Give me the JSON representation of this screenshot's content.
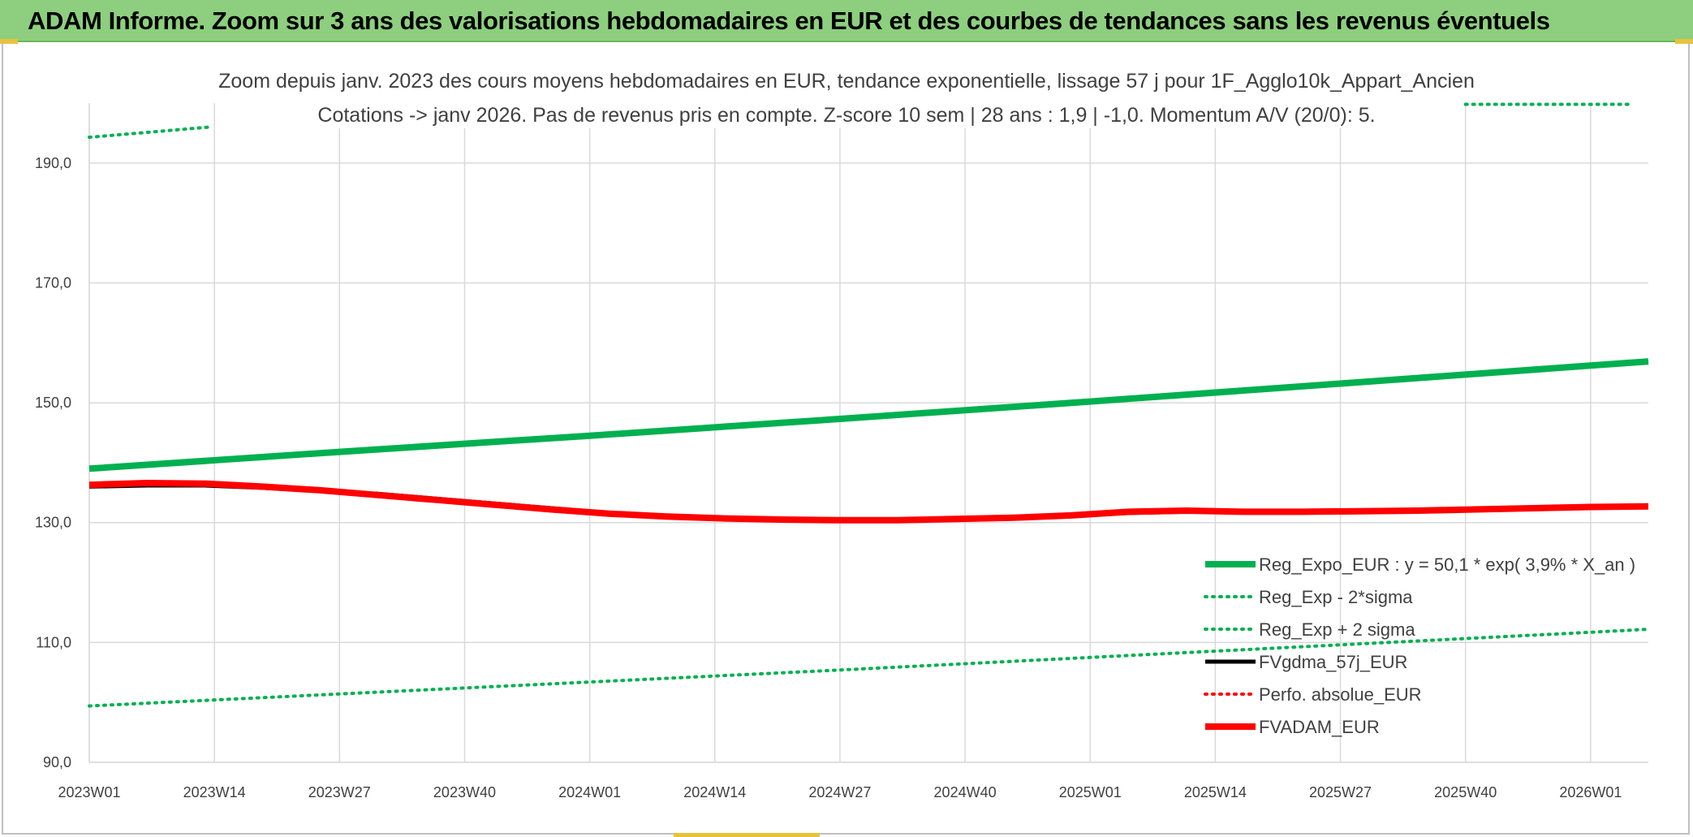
{
  "banner": {
    "title": "ADAM Informe. Zoom sur 3 ans des valorisations hebdomadaires en EUR et des courbes de tendances sans les revenus éventuels"
  },
  "colors": {
    "banner_bg": "#8dcf7e",
    "green": "#00b050",
    "red": "#ff0000",
    "black": "#000000",
    "grid": "#d9d9d9",
    "text": "#404040"
  },
  "chart_data": {
    "type": "line",
    "title": "",
    "subtitle_lines": [
      "Zoom depuis janv. 2023 des cours moyens hebdomadaires en EUR, tendance exponentielle, lissage 57 j pour 1F_Agglo10k_Appart_Ancien",
      "Cotations -> janv 2026. Pas de revenus pris en compte. Z-score 10 sem | 28 ans : 1,9 | -1,0. Momentum A/V (20/0): 5."
    ],
    "xlabel": "",
    "ylabel": "",
    "ylim": [
      90,
      200
    ],
    "y_ticks": [
      "90,0",
      "110,0",
      "130,0",
      "150,0",
      "170,0",
      "190,0"
    ],
    "y_tick_values": [
      90,
      110,
      130,
      150,
      170,
      190
    ],
    "x_ticks": [
      "2023W01",
      "2023W14",
      "2023W27",
      "2023W40",
      "2024W01",
      "2024W14",
      "2024W27",
      "2024W40",
      "2025W01",
      "2025W14",
      "2025W27",
      "2025W40",
      "2026W01"
    ],
    "x_range_weeks": [
      0,
      162
    ],
    "grid": true,
    "legend_position": "bottom-right",
    "series": [
      {
        "name": "Reg_Expo_EUR : y = 50,1 * exp( 3,9% *  X_an )",
        "style": "solid-thick",
        "color": "#00b050",
        "points": [
          [
            0,
            139.0
          ],
          [
            26,
            141.8
          ],
          [
            52,
            144.5
          ],
          [
            78,
            147.3
          ],
          [
            104,
            150.2
          ],
          [
            130,
            153.2
          ],
          [
            156,
            156.2
          ],
          [
            162,
            156.9
          ]
        ]
      },
      {
        "name": "Reg_Exp - 2*sigma",
        "style": "dotted",
        "color": "#00b050",
        "points": [
          [
            0,
            99.4
          ],
          [
            26,
            101.4
          ],
          [
            52,
            103.4
          ],
          [
            78,
            105.4
          ],
          [
            104,
            107.5
          ],
          [
            130,
            109.6
          ],
          [
            156,
            111.7
          ],
          [
            162,
            112.2
          ]
        ]
      },
      {
        "name": "Reg_Exp + 2 sigma",
        "style": "dotted",
        "color": "#00b050",
        "points": [
          [
            0,
            194.3
          ],
          [
            12.5,
            196.0
          ],
          [
            143,
            199.8
          ],
          [
            160,
            199.8
          ]
        ],
        "segments": [
          [
            0,
            12.5
          ],
          [
            143,
            160
          ]
        ]
      },
      {
        "name": "FVgdma_57j_EUR",
        "style": "solid",
        "color": "#000000",
        "points": [
          [
            0,
            136.0
          ],
          [
            6,
            136.2
          ],
          [
            12,
            136.2
          ],
          [
            18,
            135.8
          ],
          [
            24,
            135.3
          ],
          [
            30,
            134.8
          ],
          [
            36,
            134.0
          ],
          [
            42,
            133.2
          ],
          [
            48,
            132.4
          ],
          [
            54,
            131.6
          ],
          [
            60,
            131.1
          ],
          [
            66,
            130.8
          ],
          [
            72,
            130.6
          ],
          [
            78,
            130.5
          ],
          [
            84,
            130.5
          ],
          [
            90,
            130.6
          ],
          [
            96,
            130.8
          ],
          [
            102,
            131.2
          ],
          [
            108,
            131.6
          ],
          [
            114,
            131.8
          ],
          [
            120,
            131.8
          ],
          [
            126,
            131.8
          ],
          [
            132,
            131.9
          ],
          [
            138,
            132.0
          ],
          [
            144,
            132.2
          ],
          [
            150,
            132.4
          ],
          [
            156,
            132.5
          ],
          [
            162,
            132.6
          ]
        ]
      },
      {
        "name": "Perfo. absolue_EUR",
        "style": "dotted",
        "color": "#ff0000",
        "points": []
      },
      {
        "name": "FVADAM_EUR",
        "style": "solid-thick",
        "color": "#ff0000",
        "points": [
          [
            0,
            136.3
          ],
          [
            6,
            136.6
          ],
          [
            12,
            136.5
          ],
          [
            18,
            136.0
          ],
          [
            24,
            135.4
          ],
          [
            30,
            134.6
          ],
          [
            36,
            133.8
          ],
          [
            42,
            133.0
          ],
          [
            48,
            132.2
          ],
          [
            54,
            131.5
          ],
          [
            60,
            131.0
          ],
          [
            66,
            130.7
          ],
          [
            72,
            130.5
          ],
          [
            78,
            130.4
          ],
          [
            84,
            130.4
          ],
          [
            90,
            130.6
          ],
          [
            96,
            130.8
          ],
          [
            102,
            131.2
          ],
          [
            108,
            131.8
          ],
          [
            114,
            132.0
          ],
          [
            120,
            131.8
          ],
          [
            126,
            131.8
          ],
          [
            132,
            131.9
          ],
          [
            138,
            132.0
          ],
          [
            144,
            132.2
          ],
          [
            150,
            132.4
          ],
          [
            156,
            132.6
          ],
          [
            162,
            132.7
          ]
        ]
      }
    ]
  }
}
